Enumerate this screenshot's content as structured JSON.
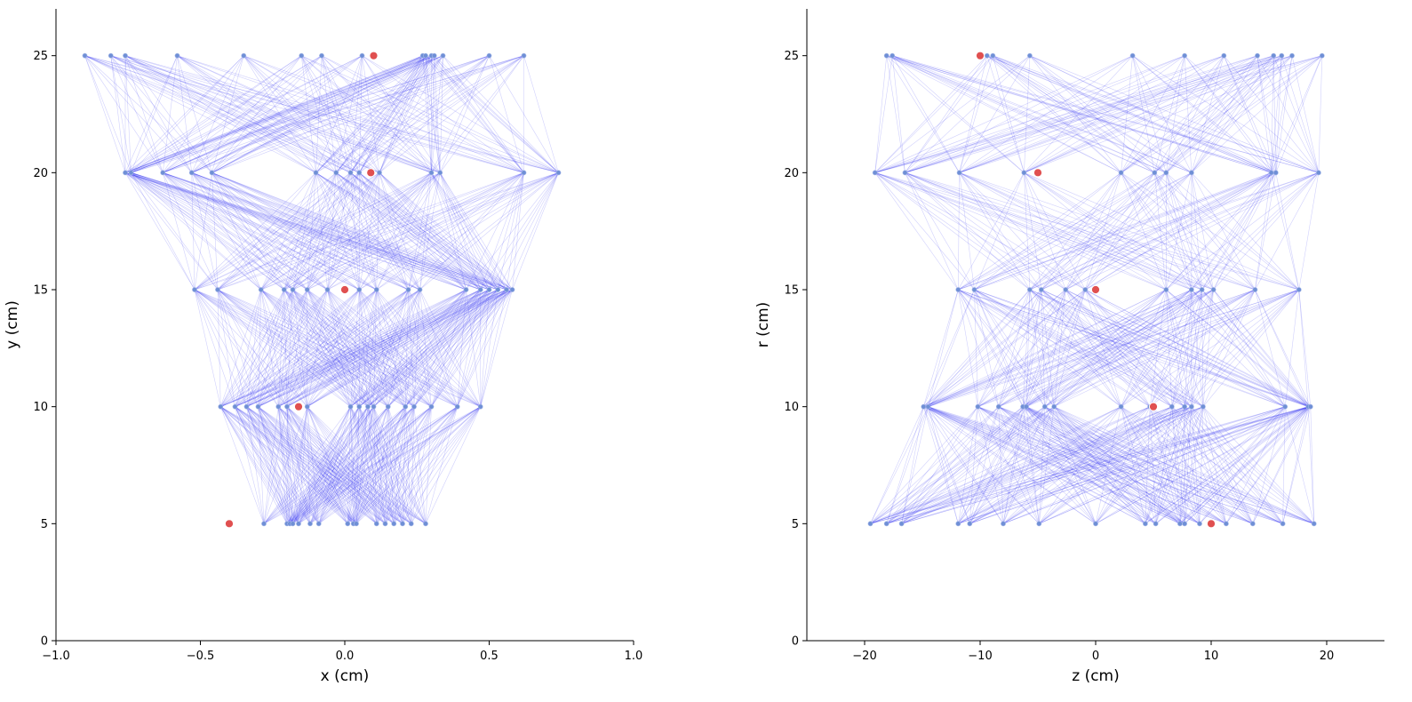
{
  "chart_data": [
    {
      "type": "scatter",
      "xlabel": "x (cm)",
      "ylabel": "y (cm)",
      "xlim": [
        -1.0,
        1.0
      ],
      "ylim": [
        0,
        27
      ],
      "xticks": [
        -1.0,
        -0.5,
        0.0,
        0.5,
        1.0
      ],
      "xtick_labels": [
        "−1.0",
        "−0.5",
        "0.0",
        "0.5",
        "1.0"
      ],
      "yticks": [
        0,
        5,
        10,
        15,
        20,
        25
      ],
      "ytick_labels": [
        "0",
        "5",
        "10",
        "15",
        "20",
        "25"
      ],
      "layers": [
        {
          "y": 5,
          "x": [
            -0.28,
            -0.2,
            -0.19,
            -0.18,
            -0.16,
            -0.12,
            -0.09,
            0.01,
            0.03,
            0.04,
            0.11,
            0.14,
            0.17,
            0.2,
            0.23,
            0.28
          ]
        },
        {
          "y": 10,
          "x": [
            -0.43,
            -0.38,
            -0.34,
            -0.3,
            -0.23,
            -0.2,
            -0.13,
            0.02,
            0.05,
            0.08,
            0.1,
            0.15,
            0.21,
            0.24,
            0.3,
            0.39,
            0.47
          ]
        },
        {
          "y": 15,
          "x": [
            -0.52,
            -0.44,
            -0.29,
            -0.21,
            -0.18,
            -0.13,
            -0.06,
            0.05,
            0.11,
            0.22,
            0.26,
            0.42,
            0.47,
            0.5,
            0.53,
            0.56,
            0.58
          ]
        },
        {
          "y": 20,
          "x": [
            -0.76,
            -0.74,
            -0.63,
            -0.53,
            -0.46,
            -0.1,
            -0.03,
            0.02,
            0.05,
            0.12,
            0.3,
            0.33,
            0.62,
            0.74
          ]
        },
        {
          "y": 25,
          "x": [
            -0.9,
            -0.81,
            -0.76,
            -0.58,
            -0.35,
            -0.15,
            -0.08,
            0.06,
            0.27,
            0.28,
            0.3,
            0.31,
            0.34,
            0.5,
            0.62
          ]
        }
      ],
      "highlighted": [
        {
          "x": -0.4,
          "y": 5
        },
        {
          "x": -0.16,
          "y": 10
        },
        {
          "x": 0.0,
          "y": 15
        },
        {
          "x": 0.09,
          "y": 20
        },
        {
          "x": 0.1,
          "y": 25
        }
      ],
      "node_color": "#6f8fd6",
      "edge_color": "#2a2af0",
      "highlight_color": "#e05050",
      "grid": false
    },
    {
      "type": "scatter",
      "xlabel": "z (cm)",
      "ylabel": "r (cm)",
      "xlim": [
        -25,
        25
      ],
      "ylim": [
        0,
        27
      ],
      "xticks": [
        -20,
        -10,
        0,
        10,
        20
      ],
      "xtick_labels": [
        "−20",
        "−10",
        "0",
        "10",
        "20"
      ],
      "yticks": [
        0,
        5,
        10,
        15,
        20,
        25
      ],
      "ytick_labels": [
        "0",
        "5",
        "10",
        "15",
        "20",
        "25"
      ],
      "layers": [
        {
          "y": 5,
          "x": [
            -19.5,
            -18.1,
            -16.8,
            -11.9,
            -10.9,
            -8,
            -4.9,
            0,
            4.3,
            5.2,
            7.3,
            7.7,
            9,
            11.3,
            13.6,
            16.2,
            18.9
          ]
        },
        {
          "y": 10,
          "x": [
            -14.9,
            -14.5,
            -10.2,
            -8.4,
            -6.3,
            -6,
            -4.4,
            -3.6,
            2.2,
            4.7,
            6.6,
            7.7,
            8.3,
            9.3,
            16.4,
            18.4,
            18.6
          ]
        },
        {
          "y": 15,
          "x": [
            -11.9,
            -10.5,
            -5.7,
            -4.7,
            -2.6,
            -0.9,
            6.1,
            8.3,
            9.2,
            10.2,
            13.8,
            17.6
          ]
        },
        {
          "y": 20,
          "x": [
            -19.1,
            -16.5,
            -11.8,
            -6.2,
            2.2,
            5.1,
            6.1,
            8.3,
            15.2,
            15.6,
            19.3
          ]
        },
        {
          "y": 25,
          "x": [
            -18.1,
            -17.6,
            -9.4,
            -8.9,
            -5.7,
            3.2,
            7.7,
            11.1,
            14,
            15.4,
            16.1,
            17,
            19.6
          ]
        }
      ],
      "highlighted": [
        {
          "x": 10,
          "y": 5
        },
        {
          "x": 5,
          "y": 10
        },
        {
          "x": 0,
          "y": 15
        },
        {
          "x": -5,
          "y": 20
        },
        {
          "x": -10,
          "y": 25
        }
      ],
      "node_color": "#6f8fd6",
      "edge_color": "#2a2af0",
      "highlight_color": "#e05050",
      "grid": false
    }
  ]
}
